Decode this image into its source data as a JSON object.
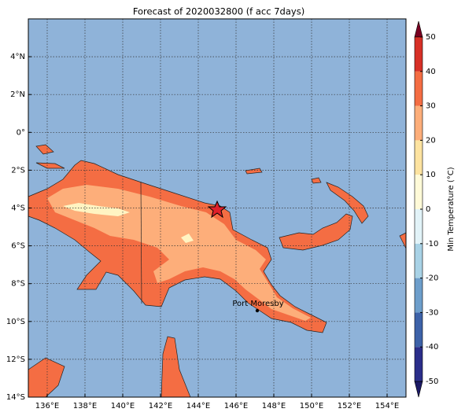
{
  "title": "Forecast of 2020032800 (f acc 7days)",
  "map": {
    "xlim": [
      135,
      155
    ],
    "ylim": [
      -14,
      6
    ],
    "grid": true,
    "ocean": "#8fb3d9",
    "xticks": [
      {
        "value": 136,
        "label": "136°E"
      },
      {
        "value": 138,
        "label": "138°E"
      },
      {
        "value": 140,
        "label": "140°E"
      },
      {
        "value": 142,
        "label": "142°E"
      },
      {
        "value": 144,
        "label": "144°E"
      },
      {
        "value": 146,
        "label": "146°E"
      },
      {
        "value": 148,
        "label": "148°E"
      },
      {
        "value": 150,
        "label": "150°E"
      },
      {
        "value": 152,
        "label": "152°E"
      },
      {
        "value": 154,
        "label": "154°E"
      }
    ],
    "yticks": [
      {
        "value": -14,
        "label": "14°S"
      },
      {
        "value": -12,
        "label": "12°S"
      },
      {
        "value": -10,
        "label": "10°S"
      },
      {
        "value": -8,
        "label": "8°S"
      },
      {
        "value": -6,
        "label": "6°S"
      },
      {
        "value": -4,
        "label": "4°S"
      },
      {
        "value": -2,
        "label": "2°S"
      },
      {
        "value": 0,
        "label": "0°"
      },
      {
        "value": 2,
        "label": "2°N"
      },
      {
        "value": 4,
        "label": "4°N"
      }
    ],
    "place": "Port Moresby"
  },
  "colorbar": {
    "label": "Min Temperature (°C)",
    "levels": [
      -50,
      -40,
      -30,
      -20,
      -10,
      0,
      10,
      20,
      30,
      40,
      50
    ],
    "colors": [
      "#1c1a66",
      "#2b2e8a",
      "#3d62a8",
      "#6d9ecb",
      "#a8d2e6",
      "#e2f3f8",
      "#fffad8",
      "#fde3a0",
      "#fdae7a",
      "#f46d43",
      "#d73027",
      "#a50026",
      "#7a0022"
    ]
  }
}
